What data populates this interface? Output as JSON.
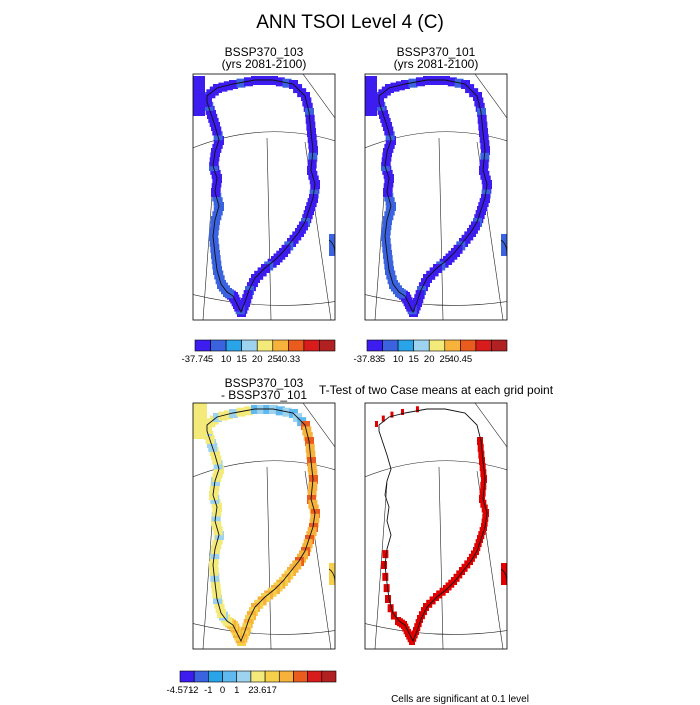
{
  "title": "ANN TSOI Level 4 (C)",
  "panels": [
    {
      "id": "case1",
      "title_line1": "BSSP370_103",
      "title_line2": "(yrs 2081-2100)"
    },
    {
      "id": "case2",
      "title_line1": "BSSP370_101",
      "title_line2": "(yrs 2081-2100)"
    },
    {
      "id": "diff",
      "title_line1": "BSSP370_103",
      "title_line2": "- BSSP370_101"
    },
    {
      "id": "ttest",
      "title_line1": "T-Test of two Case means at each grid point",
      "title_line2": ""
    }
  ],
  "colorbars": [
    {
      "id": "cb1",
      "min_label": "-37.74",
      "max_label": "40.33",
      "tick_labels": [
        "5",
        "10",
        "15",
        "20",
        "25"
      ],
      "colors": [
        "#3d1cf0",
        "#3b63e0",
        "#2aa4e8",
        "#9dd3ee",
        "#f4ea7a",
        "#f6b23a",
        "#ea5b1e",
        "#d81b1b",
        "#b22121"
      ]
    },
    {
      "id": "cb2",
      "min_label": "-37.83",
      "max_label": "40.45",
      "tick_labels": [
        "5",
        "10",
        "15",
        "20",
        "25"
      ],
      "colors": [
        "#3d1cf0",
        "#3b63e0",
        "#2aa4e8",
        "#9dd3ee",
        "#f4ea7a",
        "#f6b23a",
        "#ea5b1e",
        "#d81b1b",
        "#b22121"
      ]
    },
    {
      "id": "cb3",
      "min_label": "-4.571",
      "max_label": "3.617",
      "tick_labels": [
        "-2",
        "-1",
        "0",
        "1",
        "2"
      ],
      "colors": [
        "#3d1cf0",
        "#3b63e0",
        "#2aa4e8",
        "#5fb8ee",
        "#9dd3ee",
        "#f4ea7a",
        "#f6d04a",
        "#f6b23a",
        "#ea5b1e",
        "#d81b1b",
        "#b22121"
      ]
    }
  ],
  "footnote": "Cells are significant at 0.1 level",
  "chart_data": [
    {
      "type": "heatmap",
      "title": "BSSP370_103 (yrs 2081-2100)",
      "variable": "TSOI Level 4",
      "units": "C",
      "range": [
        -37.74,
        40.33
      ],
      "levels": [
        5,
        10,
        15,
        20,
        25
      ],
      "note": "coastal cells mostly in lowest class (dark blue)"
    },
    {
      "type": "heatmap",
      "title": "BSSP370_101 (yrs 2081-2100)",
      "variable": "TSOI Level 4",
      "units": "C",
      "range": [
        -37.83,
        40.45
      ],
      "levels": [
        5,
        10,
        15,
        20,
        25
      ],
      "note": "coastal cells mostly in lowest class (dark blue)"
    },
    {
      "type": "heatmap",
      "title": "BSSP370_103 - BSSP370_101",
      "variable": "TSOI Level 4 difference",
      "units": "C",
      "range": [
        -4.571,
        3.617
      ],
      "levels": [
        -2,
        -1,
        0,
        1,
        2
      ],
      "note": "east coast warmer (orange/red), west coast near zero"
    },
    {
      "type": "heatmap",
      "title": "T-Test of two Case means at each grid point",
      "note": "significant cells shown in red along east and south coasts"
    }
  ]
}
